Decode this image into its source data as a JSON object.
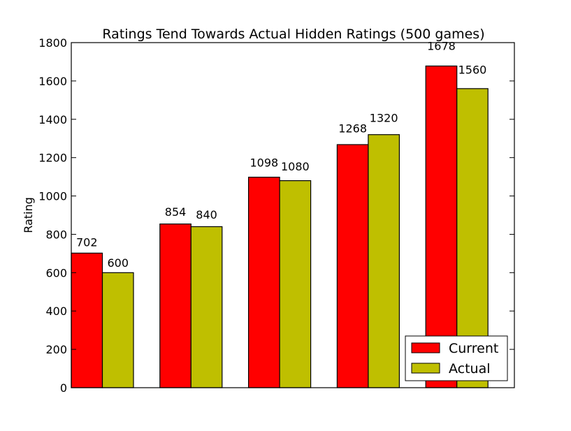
{
  "chart_data": {
    "type": "bar",
    "title": "Ratings Tend Towards Actual Hidden Ratings (500 games)",
    "xlabel": "",
    "ylabel": "Rating",
    "ylim": [
      0,
      1800
    ],
    "yticks": [
      "0",
      "200",
      "400",
      "600",
      "800",
      "1000",
      "1200",
      "1400",
      "1600",
      "1800"
    ],
    "categories": [
      "",
      "",
      "",
      "",
      ""
    ],
    "grid": false,
    "legend_position": "lower-right",
    "series": [
      {
        "name": "Current",
        "color": "#ff0000",
        "values": [
          702,
          854,
          1098,
          1268,
          1678
        ],
        "labels": [
          "702",
          "854",
          "1098",
          "1268",
          "1678"
        ]
      },
      {
        "name": "Actual",
        "color": "#bfbf00",
        "values": [
          600,
          840,
          1080,
          1320,
          1560
        ],
        "labels": [
          "600",
          "840",
          "1080",
          "1320",
          "1560"
        ]
      }
    ]
  }
}
